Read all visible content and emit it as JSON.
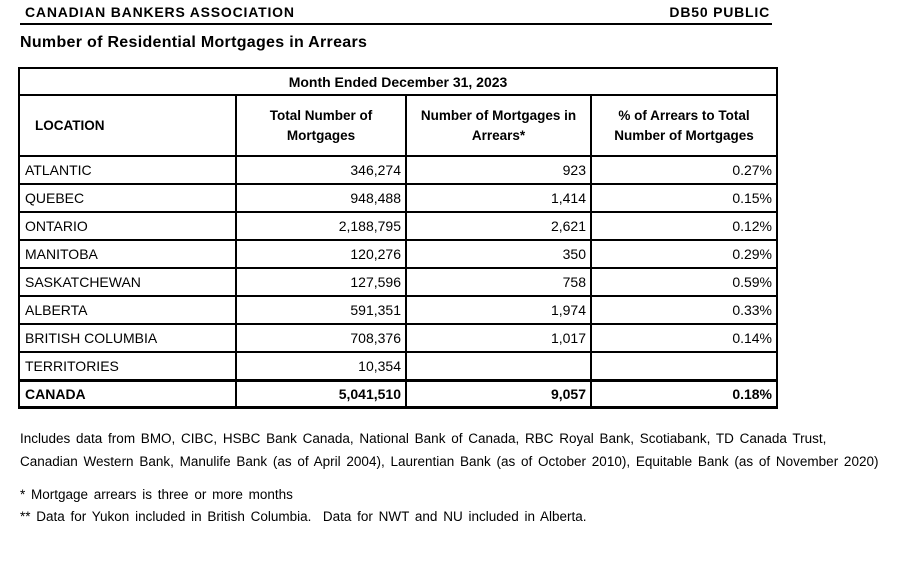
{
  "page_header": {
    "left": "CANADIAN BANKERS ASSOCIATION",
    "right": "DB50 PUBLIC"
  },
  "title": "Number of Residential Mortgages in Arrears",
  "table": {
    "period_header": "Month Ended December 31, 2023",
    "columns": [
      "LOCATION",
      "Total Number of\nMortgages",
      "Number of Mortgages in\nArrears*",
      "% of Arrears to Total\nNumber of Mortgages"
    ],
    "rows": [
      {
        "location": "ATLANTIC",
        "total": "346,274",
        "arrears": "923",
        "pct": "0.27%"
      },
      {
        "location": "QUEBEC",
        "total": "948,488",
        "arrears": "1,414",
        "pct": "0.15%"
      },
      {
        "location": "ONTARIO",
        "total": "2,188,795",
        "arrears": "2,621",
        "pct": "0.12%"
      },
      {
        "location": "MANITOBA",
        "total": "120,276",
        "arrears": "350",
        "pct": "0.29%"
      },
      {
        "location": "SASKATCHEWAN",
        "total": "127,596",
        "arrears": "758",
        "pct": "0.59%"
      },
      {
        "location": "ALBERTA",
        "total": "591,351",
        "arrears": "1,974",
        "pct": "0.33%"
      },
      {
        "location": "BRITISH COLUMBIA",
        "total": "708,376",
        "arrears": "1,017",
        "pct": "0.14%"
      },
      {
        "location": "TERRITORIES",
        "total": "10,354",
        "arrears": "",
        "pct": ""
      }
    ],
    "total_row": {
      "location": "CANADA",
      "total": "5,041,510",
      "arrears": "9,057",
      "pct": "0.18%"
    }
  },
  "footnotes": {
    "source_lines": [
      "Includes data from BMO, CIBC, HSBC Bank Canada, National Bank of Canada, RBC Royal Bank, Scotiabank, TD Canada Trust,",
      "Canadian Western Bank, Manulife Bank (as of April 2004), Laurentian Bank (as of October 2010), Equitable Bank (as of November 2020)"
    ],
    "notes": [
      "* Mortgage arrears is three or more months",
      "** Data for Yukon included in British Columbia.  Data for NWT and NU included in Alberta."
    ]
  }
}
